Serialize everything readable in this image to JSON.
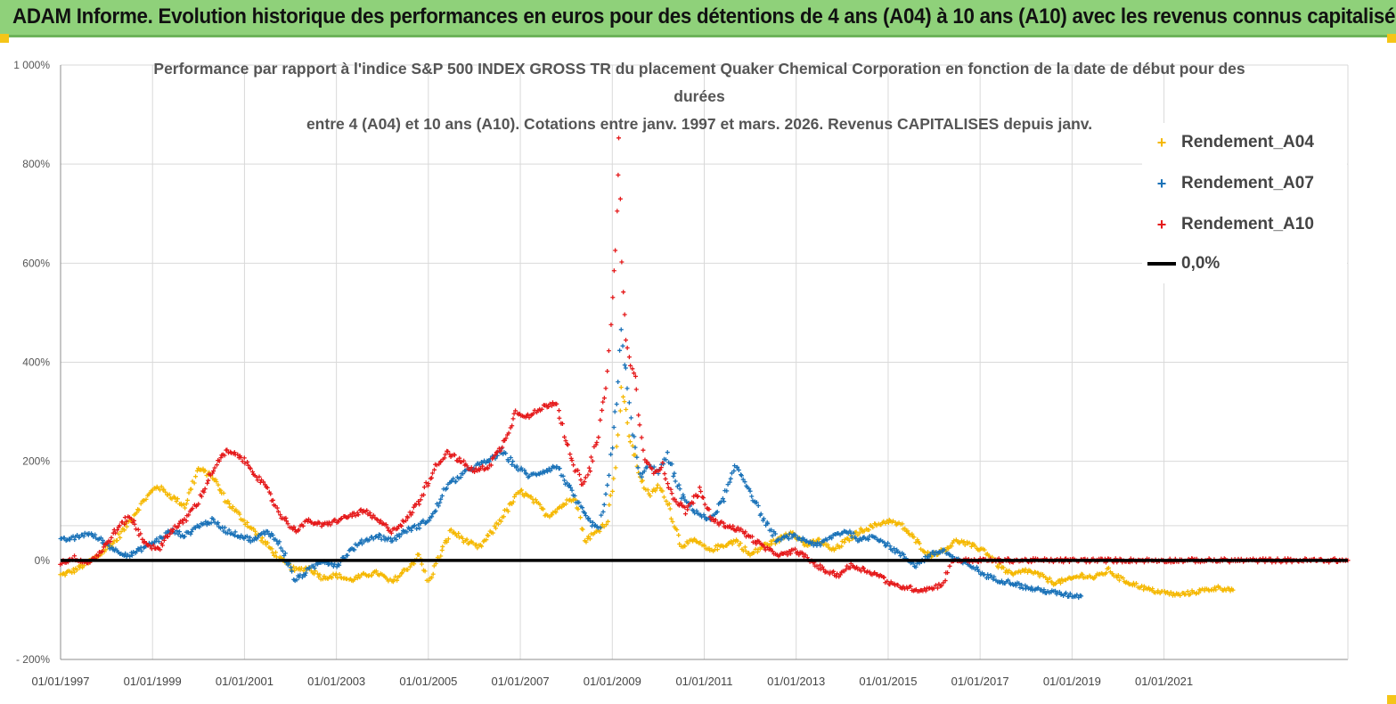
{
  "banner": {
    "title": "ADAM Informe. Evolution historique des performances en euros pour des détentions de 4 ans (A04) à 10 ans (A10) avec les revenus connus capitalisés"
  },
  "chart_data": {
    "type": "scatter",
    "title_lines": [
      "Performance par rapport à l'indice S&P 500 INDEX GROSS TR  du placement Quaker Chemical Corporation en fonction de la date de début pour des",
      "durées",
      "entre 4 (A04) et 10 ans (A10). Cotations entre janv. 1997 et mars. 2026. Revenus CAPITALISES depuis janv."
    ],
    "xlim": [
      1997.0,
      2025.0
    ],
    "ylim": [
      -200,
      1000
    ],
    "x_tick_values": [
      1997,
      1999,
      2001,
      2003,
      2005,
      2007,
      2009,
      2011,
      2013,
      2015,
      2017,
      2019,
      2021
    ],
    "x_tick_labels": [
      "01/01/1997",
      "01/01/1999",
      "01/01/2001",
      "01/01/2003",
      "01/01/2005",
      "01/01/2007",
      "01/01/2009",
      "01/01/2011",
      "01/01/2013",
      "01/01/2015",
      "01/01/2017",
      "01/01/2019",
      "01/01/2021"
    ],
    "y_tick_values": [
      -200,
      0,
      200,
      400,
      600,
      800,
      1000
    ],
    "y_tick_labels": [
      "- 200%",
      "0%",
      "200%",
      "400%",
      "600%",
      "800%",
      "1 000%"
    ],
    "extra_gridline_y": 70,
    "series": [
      {
        "name": "Rendement_A04",
        "color": "#f5b800",
        "points": [
          [
            1997.0,
            -30
          ],
          [
            1997.3,
            -20
          ],
          [
            1997.6,
            -5
          ],
          [
            1997.9,
            15
          ],
          [
            1998.2,
            40
          ],
          [
            1998.5,
            80
          ],
          [
            1998.8,
            120
          ],
          [
            1999.1,
            150
          ],
          [
            1999.4,
            130
          ],
          [
            1999.7,
            110
          ],
          [
            2000.0,
            185
          ],
          [
            2000.3,
            170
          ],
          [
            2000.6,
            120
          ],
          [
            2000.9,
            90
          ],
          [
            2001.2,
            60
          ],
          [
            2001.5,
            30
          ],
          [
            2001.8,
            0
          ],
          [
            2002.1,
            -20
          ],
          [
            2002.4,
            -15
          ],
          [
            2002.7,
            -35
          ],
          [
            2003.0,
            -30
          ],
          [
            2003.3,
            -40
          ],
          [
            2003.6,
            -30
          ],
          [
            2003.9,
            -25
          ],
          [
            2004.2,
            -45
          ],
          [
            2004.5,
            -20
          ],
          [
            2004.8,
            10
          ],
          [
            2005.0,
            -45
          ],
          [
            2005.2,
            0
          ],
          [
            2005.5,
            60
          ],
          [
            2005.8,
            40
          ],
          [
            2006.1,
            25
          ],
          [
            2006.4,
            60
          ],
          [
            2006.7,
            100
          ],
          [
            2007.0,
            140
          ],
          [
            2007.3,
            120
          ],
          [
            2007.6,
            90
          ],
          [
            2007.9,
            110
          ],
          [
            2008.2,
            130
          ],
          [
            2008.4,
            40
          ],
          [
            2008.7,
            60
          ],
          [
            2008.9,
            80
          ],
          [
            2009.1,
            220
          ],
          [
            2009.2,
            350
          ],
          [
            2009.4,
            240
          ],
          [
            2009.6,
            170
          ],
          [
            2009.8,
            130
          ],
          [
            2010.0,
            150
          ],
          [
            2010.2,
            120
          ],
          [
            2010.5,
            30
          ],
          [
            2010.8,
            40
          ],
          [
            2011.1,
            20
          ],
          [
            2011.4,
            30
          ],
          [
            2011.7,
            40
          ],
          [
            2012.0,
            10
          ],
          [
            2012.3,
            30
          ],
          [
            2012.6,
            40
          ],
          [
            2012.9,
            60
          ],
          [
            2013.2,
            30
          ],
          [
            2013.5,
            40
          ],
          [
            2013.8,
            20
          ],
          [
            2014.1,
            40
          ],
          [
            2014.4,
            60
          ],
          [
            2014.7,
            70
          ],
          [
            2015.0,
            80
          ],
          [
            2015.3,
            70
          ],
          [
            2015.6,
            40
          ],
          [
            2015.9,
            10
          ],
          [
            2016.2,
            20
          ],
          [
            2016.5,
            40
          ],
          [
            2016.8,
            30
          ],
          [
            2017.1,
            20
          ],
          [
            2017.4,
            -10
          ],
          [
            2017.7,
            -30
          ],
          [
            2018.0,
            -20
          ],
          [
            2018.3,
            -30
          ],
          [
            2018.6,
            -45
          ],
          [
            2018.9,
            -40
          ],
          [
            2019.2,
            -30
          ],
          [
            2019.5,
            -35
          ],
          [
            2019.8,
            -20
          ],
          [
            2020.1,
            -40
          ],
          [
            2020.4,
            -50
          ],
          [
            2020.7,
            -60
          ],
          [
            2021.0,
            -65
          ],
          [
            2021.3,
            -70
          ],
          [
            2021.6,
            -65
          ],
          [
            2021.9,
            -60
          ],
          [
            2022.2,
            -55
          ],
          [
            2022.5,
            -60
          ]
        ]
      },
      {
        "name": "Rendement_A07",
        "color": "#1a72b8",
        "points": [
          [
            1997.0,
            40
          ],
          [
            1997.3,
            45
          ],
          [
            1997.6,
            55
          ],
          [
            1997.9,
            40
          ],
          [
            1998.2,
            20
          ],
          [
            1998.5,
            10
          ],
          [
            1998.8,
            25
          ],
          [
            1999.1,
            40
          ],
          [
            1999.4,
            60
          ],
          [
            1999.7,
            50
          ],
          [
            2000.0,
            70
          ],
          [
            2000.3,
            80
          ],
          [
            2000.6,
            60
          ],
          [
            2000.9,
            50
          ],
          [
            2001.2,
            40
          ],
          [
            2001.5,
            60
          ],
          [
            2001.8,
            30
          ],
          [
            2002.1,
            -40
          ],
          [
            2002.4,
            -20
          ],
          [
            2002.7,
            0
          ],
          [
            2003.0,
            -10
          ],
          [
            2003.3,
            20
          ],
          [
            2003.6,
            40
          ],
          [
            2003.9,
            50
          ],
          [
            2004.2,
            40
          ],
          [
            2004.5,
            60
          ],
          [
            2004.8,
            70
          ],
          [
            2005.1,
            90
          ],
          [
            2005.4,
            150
          ],
          [
            2005.7,
            170
          ],
          [
            2006.0,
            190
          ],
          [
            2006.3,
            200
          ],
          [
            2006.6,
            220
          ],
          [
            2006.9,
            190
          ],
          [
            2007.2,
            170
          ],
          [
            2007.5,
            180
          ],
          [
            2007.8,
            190
          ],
          [
            2008.1,
            140
          ],
          [
            2008.4,
            90
          ],
          [
            2008.7,
            60
          ],
          [
            2008.9,
            140
          ],
          [
            2009.1,
            320
          ],
          [
            2009.2,
            470
          ],
          [
            2009.4,
            280
          ],
          [
            2009.6,
            170
          ],
          [
            2009.8,
            190
          ],
          [
            2010.0,
            180
          ],
          [
            2010.2,
            210
          ],
          [
            2010.5,
            130
          ],
          [
            2010.8,
            100
          ],
          [
            2011.1,
            80
          ],
          [
            2011.4,
            120
          ],
          [
            2011.7,
            190
          ],
          [
            2012.0,
            140
          ],
          [
            2012.3,
            80
          ],
          [
            2012.6,
            40
          ],
          [
            2012.9,
            50
          ],
          [
            2013.2,
            40
          ],
          [
            2013.5,
            30
          ],
          [
            2013.8,
            50
          ],
          [
            2014.1,
            60
          ],
          [
            2014.4,
            40
          ],
          [
            2014.7,
            50
          ],
          [
            2015.0,
            30
          ],
          [
            2015.3,
            10
          ],
          [
            2015.6,
            -10
          ],
          [
            2015.9,
            10
          ],
          [
            2016.2,
            20
          ],
          [
            2016.5,
            0
          ],
          [
            2016.8,
            -10
          ],
          [
            2017.1,
            -30
          ],
          [
            2017.4,
            -40
          ],
          [
            2017.7,
            -45
          ],
          [
            2018.0,
            -55
          ],
          [
            2018.3,
            -60
          ],
          [
            2018.6,
            -65
          ],
          [
            2018.9,
            -70
          ],
          [
            2019.2,
            -72
          ]
        ]
      },
      {
        "name": "Rendement_A10",
        "color": "#e5191a",
        "points": [
          [
            1997.0,
            -5
          ],
          [
            1997.3,
            5
          ],
          [
            1997.6,
            -5
          ],
          [
            1997.9,
            20
          ],
          [
            1998.2,
            60
          ],
          [
            1998.5,
            90
          ],
          [
            1998.8,
            40
          ],
          [
            1999.1,
            20
          ],
          [
            1999.4,
            60
          ],
          [
            1999.7,
            80
          ],
          [
            2000.0,
            120
          ],
          [
            2000.3,
            180
          ],
          [
            2000.6,
            220
          ],
          [
            2000.9,
            210
          ],
          [
            2001.2,
            180
          ],
          [
            2001.5,
            140
          ],
          [
            2001.8,
            90
          ],
          [
            2002.1,
            60
          ],
          [
            2002.4,
            80
          ],
          [
            2002.7,
            70
          ],
          [
            2003.0,
            80
          ],
          [
            2003.3,
            90
          ],
          [
            2003.6,
            100
          ],
          [
            2003.9,
            80
          ],
          [
            2004.2,
            60
          ],
          [
            2004.5,
            80
          ],
          [
            2004.8,
            120
          ],
          [
            2005.1,
            180
          ],
          [
            2005.4,
            220
          ],
          [
            2005.7,
            200
          ],
          [
            2006.0,
            180
          ],
          [
            2006.3,
            190
          ],
          [
            2006.6,
            230
          ],
          [
            2006.9,
            300
          ],
          [
            2007.2,
            290
          ],
          [
            2007.5,
            310
          ],
          [
            2007.8,
            320
          ],
          [
            2008.1,
            200
          ],
          [
            2008.4,
            150
          ],
          [
            2008.7,
            250
          ],
          [
            2008.9,
            380
          ],
          [
            2009.0,
            520
          ],
          [
            2009.1,
            700
          ],
          [
            2009.15,
            850
          ],
          [
            2009.2,
            600
          ],
          [
            2009.3,
            440
          ],
          [
            2009.5,
            360
          ],
          [
            2009.7,
            200
          ],
          [
            2009.9,
            180
          ],
          [
            2010.1,
            190
          ],
          [
            2010.3,
            130
          ],
          [
            2010.6,
            100
          ],
          [
            2010.9,
            140
          ],
          [
            2011.2,
            80
          ],
          [
            2011.5,
            70
          ],
          [
            2011.8,
            60
          ],
          [
            2012.1,
            40
          ],
          [
            2012.4,
            20
          ],
          [
            2012.7,
            10
          ],
          [
            2013.0,
            20
          ],
          [
            2013.3,
            0
          ],
          [
            2013.6,
            -20
          ],
          [
            2013.9,
            -30
          ],
          [
            2014.2,
            -10
          ],
          [
            2014.5,
            -20
          ],
          [
            2014.8,
            -30
          ],
          [
            2015.1,
            -50
          ],
          [
            2015.4,
            -55
          ],
          [
            2015.7,
            -60
          ],
          [
            2016.0,
            -55
          ],
          [
            2016.2,
            -45
          ],
          [
            2016.4,
            0
          ],
          [
            2017.0,
            0
          ],
          [
            2018.0,
            0
          ],
          [
            2019.0,
            0
          ],
          [
            2020.0,
            0
          ],
          [
            2021.0,
            0
          ],
          [
            2022.0,
            0
          ],
          [
            2023.0,
            0
          ],
          [
            2024.0,
            0
          ],
          [
            2025.0,
            0
          ]
        ]
      }
    ],
    "reference_line": {
      "name": "0,0%",
      "y": 0,
      "color": "#000000"
    },
    "legend_position": "top-right"
  }
}
